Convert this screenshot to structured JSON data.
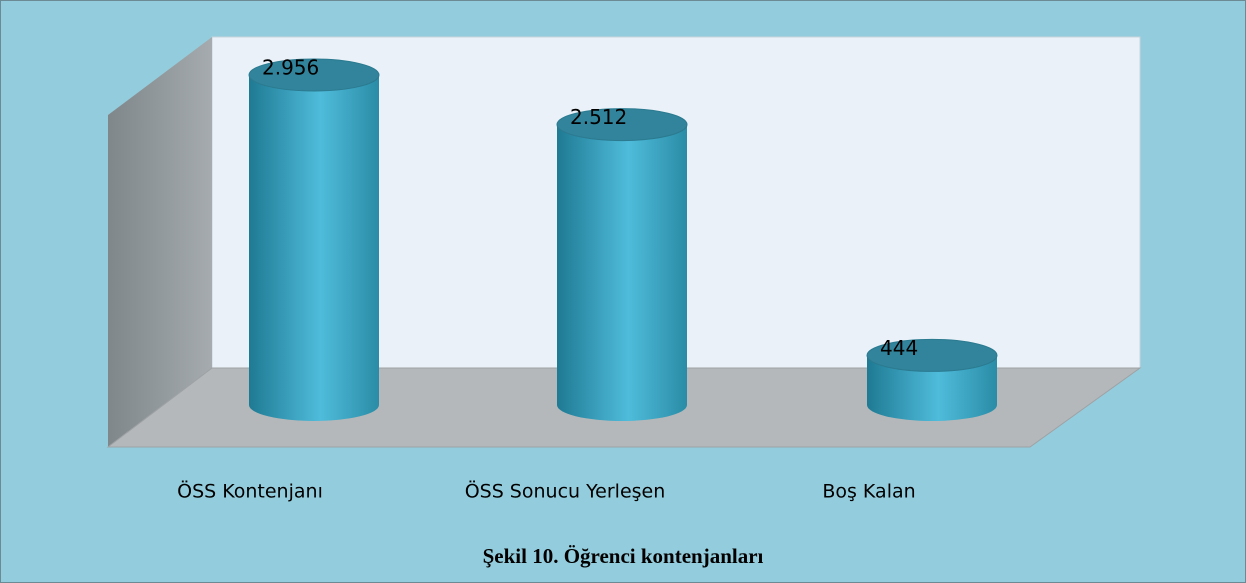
{
  "chart_data": {
    "type": "bar3d",
    "title": "Şekil 10. Öğrenci kontenjanları",
    "categories": [
      "ÖSS Kontenjanı",
      "ÖSS Sonucu Yerleşen",
      "Boş Kalan"
    ],
    "values": [
      2956,
      2512,
      444
    ],
    "value_labels": [
      "2.956",
      "2.512",
      "444"
    ],
    "color": "#4bb8d6"
  }
}
